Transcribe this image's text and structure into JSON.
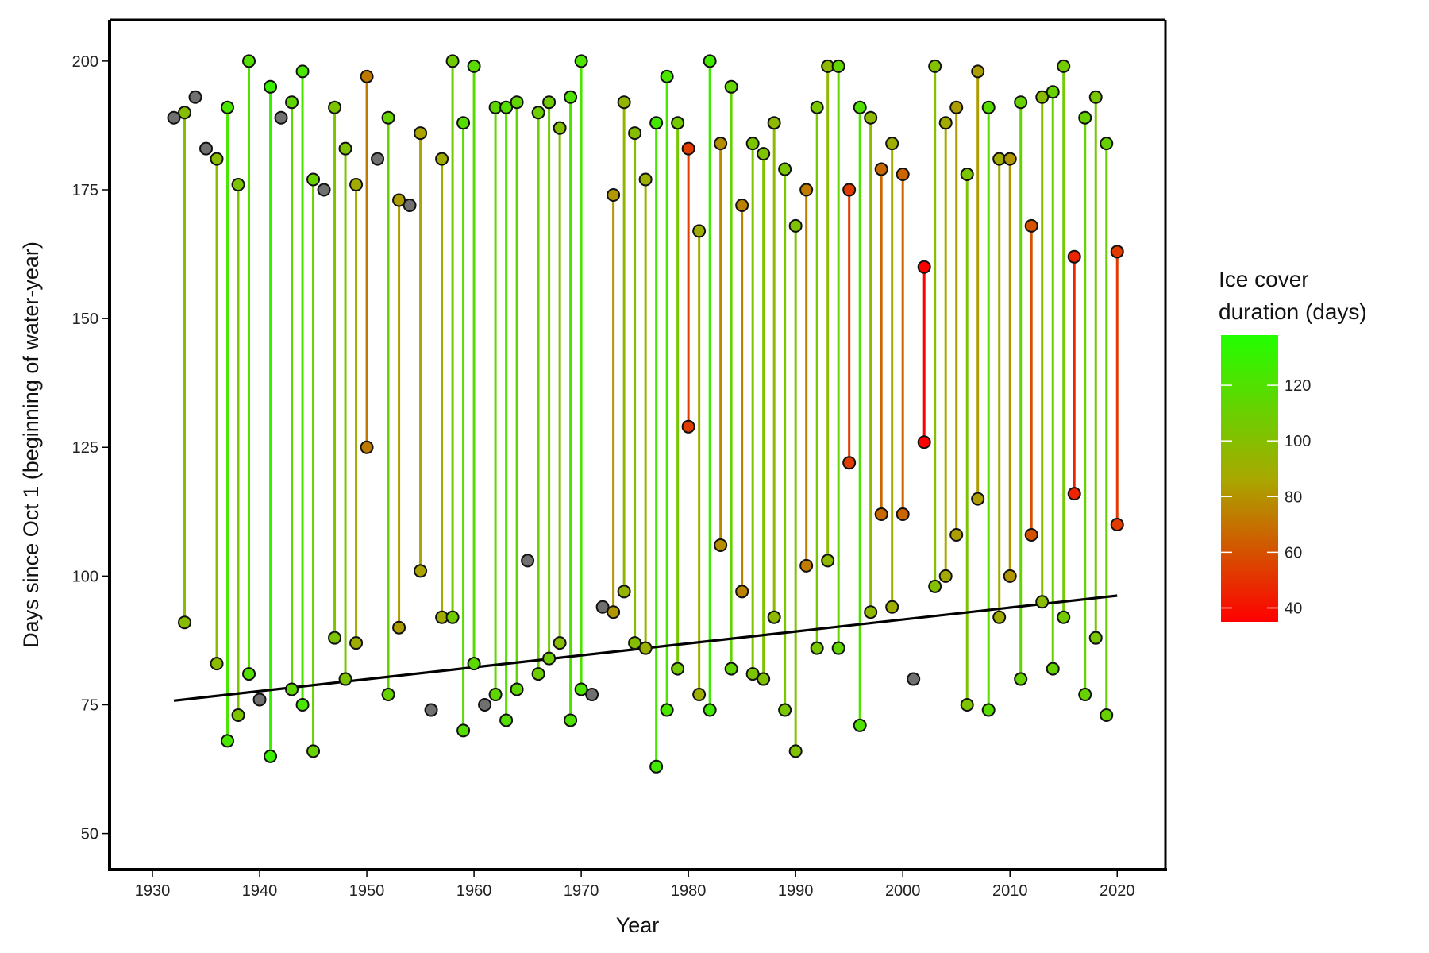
{
  "chart_data": {
    "type": "scatter",
    "xlabel": "Year",
    "ylabel": "Days since Oct 1 (beginning of water-year)",
    "xlim": [
      1926,
      2024.5
    ],
    "ylim": [
      43,
      208
    ],
    "x_ticks": [
      1930,
      1940,
      1950,
      1960,
      1970,
      1980,
      1990,
      2000,
      2010,
      2020
    ],
    "y_ticks": [
      50,
      75,
      100,
      125,
      150,
      175,
      200
    ],
    "legend": {
      "title_lines": [
        "Ice cover",
        "duration (days)"
      ],
      "placement": "right",
      "ticks": [
        40,
        60,
        80,
        100,
        120
      ],
      "range": [
        35,
        138
      ],
      "color_low": "#ff0000",
      "color_mid": "#a8a800",
      "color_high": "#22ff00"
    },
    "missing_color": "#707070",
    "trend": {
      "x": [
        1932,
        2020
      ],
      "y": [
        75.8,
        96.2
      ],
      "color": "#000000"
    },
    "series": [
      {
        "year": 1932,
        "freeze": 189,
        "thaw": null,
        "duration": null
      },
      {
        "year": 1933,
        "freeze": 91,
        "thaw": 190,
        "duration": 99
      },
      {
        "year": 1934,
        "freeze": 193,
        "thaw": null,
        "duration": null
      },
      {
        "year": 1935,
        "freeze": 183,
        "thaw": null,
        "duration": null
      },
      {
        "year": 1936,
        "freeze": 83,
        "thaw": 181,
        "duration": 98
      },
      {
        "year": 1937,
        "freeze": 68,
        "thaw": 191,
        "duration": 123
      },
      {
        "year": 1938,
        "freeze": 73,
        "thaw": 176,
        "duration": 103
      },
      {
        "year": 1939,
        "freeze": 81,
        "thaw": 200,
        "duration": 119
      },
      {
        "year": 1940,
        "freeze": 76,
        "thaw": null,
        "duration": null
      },
      {
        "year": 1941,
        "freeze": 65,
        "thaw": 195,
        "duration": 130
      },
      {
        "year": 1942,
        "freeze": 189,
        "thaw": null,
        "duration": null
      },
      {
        "year": 1943,
        "freeze": 78,
        "thaw": 192,
        "duration": 114
      },
      {
        "year": 1944,
        "freeze": 75,
        "thaw": 198,
        "duration": 123
      },
      {
        "year": 1945,
        "freeze": 66,
        "thaw": 177,
        "duration": 111
      },
      {
        "year": 1946,
        "freeze": 175,
        "thaw": null,
        "duration": null
      },
      {
        "year": 1947,
        "freeze": 88,
        "thaw": 191,
        "duration": 103
      },
      {
        "year": 1948,
        "freeze": 80,
        "thaw": 183,
        "duration": 103
      },
      {
        "year": 1949,
        "freeze": 87,
        "thaw": 176,
        "duration": 89
      },
      {
        "year": 1950,
        "freeze": 125,
        "thaw": 197,
        "duration": 72
      },
      {
        "year": 1951,
        "freeze": 181,
        "thaw": null,
        "duration": null
      },
      {
        "year": 1952,
        "freeze": 77,
        "thaw": 189,
        "duration": 112
      },
      {
        "year": 1953,
        "freeze": 90,
        "thaw": 173,
        "duration": 83
      },
      {
        "year": 1954,
        "freeze": 172,
        "thaw": null,
        "duration": null
      },
      {
        "year": 1955,
        "freeze": 101,
        "thaw": 186,
        "duration": 85
      },
      {
        "year": 1956,
        "freeze": 74,
        "thaw": null,
        "duration": null
      },
      {
        "year": 1957,
        "freeze": 92,
        "thaw": 181,
        "duration": 89
      },
      {
        "year": 1958,
        "freeze": 92,
        "thaw": 200,
        "duration": 108
      },
      {
        "year": 1959,
        "freeze": 70,
        "thaw": 188,
        "duration": 118
      },
      {
        "year": 1960,
        "freeze": 83,
        "thaw": 199,
        "duration": 116
      },
      {
        "year": 1961,
        "freeze": 75,
        "thaw": null,
        "duration": null
      },
      {
        "year": 1962,
        "freeze": 77,
        "thaw": 191,
        "duration": 114
      },
      {
        "year": 1963,
        "freeze": 72,
        "thaw": 191,
        "duration": 119
      },
      {
        "year": 1964,
        "freeze": 78,
        "thaw": 192,
        "duration": 114
      },
      {
        "year": 1965,
        "freeze": 103,
        "thaw": null,
        "duration": null
      },
      {
        "year": 1966,
        "freeze": 81,
        "thaw": 190,
        "duration": 109
      },
      {
        "year": 1967,
        "freeze": 84,
        "thaw": 192,
        "duration": 108
      },
      {
        "year": 1968,
        "freeze": 87,
        "thaw": 187,
        "duration": 100
      },
      {
        "year": 1969,
        "freeze": 72,
        "thaw": 193,
        "duration": 121
      },
      {
        "year": 1970,
        "freeze": 78,
        "thaw": 200,
        "duration": 122
      },
      {
        "year": 1971,
        "freeze": 77,
        "thaw": null,
        "duration": null
      },
      {
        "year": 1972,
        "freeze": 94,
        "thaw": null,
        "duration": null
      },
      {
        "year": 1973,
        "freeze": 93,
        "thaw": 174,
        "duration": 81
      },
      {
        "year": 1974,
        "freeze": 97,
        "thaw": 192,
        "duration": 95
      },
      {
        "year": 1975,
        "freeze": 87,
        "thaw": 186,
        "duration": 99
      },
      {
        "year": 1976,
        "freeze": 86,
        "thaw": 177,
        "duration": 91
      },
      {
        "year": 1977,
        "freeze": 63,
        "thaw": 188,
        "duration": 125
      },
      {
        "year": 1978,
        "freeze": 74,
        "thaw": 197,
        "duration": 123
      },
      {
        "year": 1979,
        "freeze": 82,
        "thaw": 188,
        "duration": 106
      },
      {
        "year": 1980,
        "freeze": 129,
        "thaw": 183,
        "duration": 54
      },
      {
        "year": 1981,
        "freeze": 77,
        "thaw": 167,
        "duration": 90
      },
      {
        "year": 1982,
        "freeze": 74,
        "thaw": 200,
        "duration": 126
      },
      {
        "year": 1983,
        "freeze": 106,
        "thaw": 184,
        "duration": 78
      },
      {
        "year": 1984,
        "freeze": 82,
        "thaw": 195,
        "duration": 113
      },
      {
        "year": 1985,
        "freeze": 97,
        "thaw": 172,
        "duration": 75
      },
      {
        "year": 1986,
        "freeze": 81,
        "thaw": 184,
        "duration": 103
      },
      {
        "year": 1987,
        "freeze": 80,
        "thaw": 182,
        "duration": 102
      },
      {
        "year": 1988,
        "freeze": 92,
        "thaw": 188,
        "duration": 96
      },
      {
        "year": 1989,
        "freeze": 74,
        "thaw": 179,
        "duration": 105
      },
      {
        "year": 1990,
        "freeze": 66,
        "thaw": 168,
        "duration": 102
      },
      {
        "year": 1991,
        "freeze": 102,
        "thaw": 175,
        "duration": 73
      },
      {
        "year": 1992,
        "freeze": 86,
        "thaw": 191,
        "duration": 105
      },
      {
        "year": 1993,
        "freeze": 103,
        "thaw": 199,
        "duration": 96
      },
      {
        "year": 1994,
        "freeze": 86,
        "thaw": 199,
        "duration": 113
      },
      {
        "year": 1995,
        "freeze": 122,
        "thaw": 175,
        "duration": 53
      },
      {
        "year": 1996,
        "freeze": 71,
        "thaw": 191,
        "duration": 120
      },
      {
        "year": 1997,
        "freeze": 93,
        "thaw": 189,
        "duration": 96
      },
      {
        "year": 1998,
        "freeze": 112,
        "thaw": 179,
        "duration": 67
      },
      {
        "year": 1999,
        "freeze": 94,
        "thaw": 184,
        "duration": 90
      },
      {
        "year": 2000,
        "freeze": 112,
        "thaw": 178,
        "duration": 66
      },
      {
        "year": 2001,
        "freeze": 80,
        "thaw": null,
        "duration": null
      },
      {
        "year": 2002,
        "freeze": 126,
        "thaw": 160,
        "duration": 34
      },
      {
        "year": 2003,
        "freeze": 98,
        "thaw": 199,
        "duration": 101
      },
      {
        "year": 2004,
        "freeze": 100,
        "thaw": 188,
        "duration": 88
      },
      {
        "year": 2005,
        "freeze": 108,
        "thaw": 191,
        "duration": 83
      },
      {
        "year": 2006,
        "freeze": 75,
        "thaw": 178,
        "duration": 103
      },
      {
        "year": 2007,
        "freeze": 115,
        "thaw": 198,
        "duration": 83
      },
      {
        "year": 2008,
        "freeze": 74,
        "thaw": 191,
        "duration": 117
      },
      {
        "year": 2009,
        "freeze": 92,
        "thaw": 181,
        "duration": 89
      },
      {
        "year": 2010,
        "freeze": 100,
        "thaw": 181,
        "duration": 81
      },
      {
        "year": 2011,
        "freeze": 80,
        "thaw": 192,
        "duration": 112
      },
      {
        "year": 2012,
        "freeze": 108,
        "thaw": 168,
        "duration": 60
      },
      {
        "year": 2013,
        "freeze": 95,
        "thaw": 193,
        "duration": 98
      },
      {
        "year": 2014,
        "freeze": 82,
        "thaw": 194,
        "duration": 112
      },
      {
        "year": 2015,
        "freeze": 92,
        "thaw": 199,
        "duration": 107
      },
      {
        "year": 2016,
        "freeze": 116,
        "thaw": 162,
        "duration": 46
      },
      {
        "year": 2017,
        "freeze": 77,
        "thaw": 189,
        "duration": 112
      },
      {
        "year": 2018,
        "freeze": 88,
        "thaw": 193,
        "duration": 105
      },
      {
        "year": 2019,
        "freeze": 73,
        "thaw": 184,
        "duration": 111
      },
      {
        "year": 2020,
        "freeze": 110,
        "thaw": 163,
        "duration": 53
      }
    ]
  }
}
